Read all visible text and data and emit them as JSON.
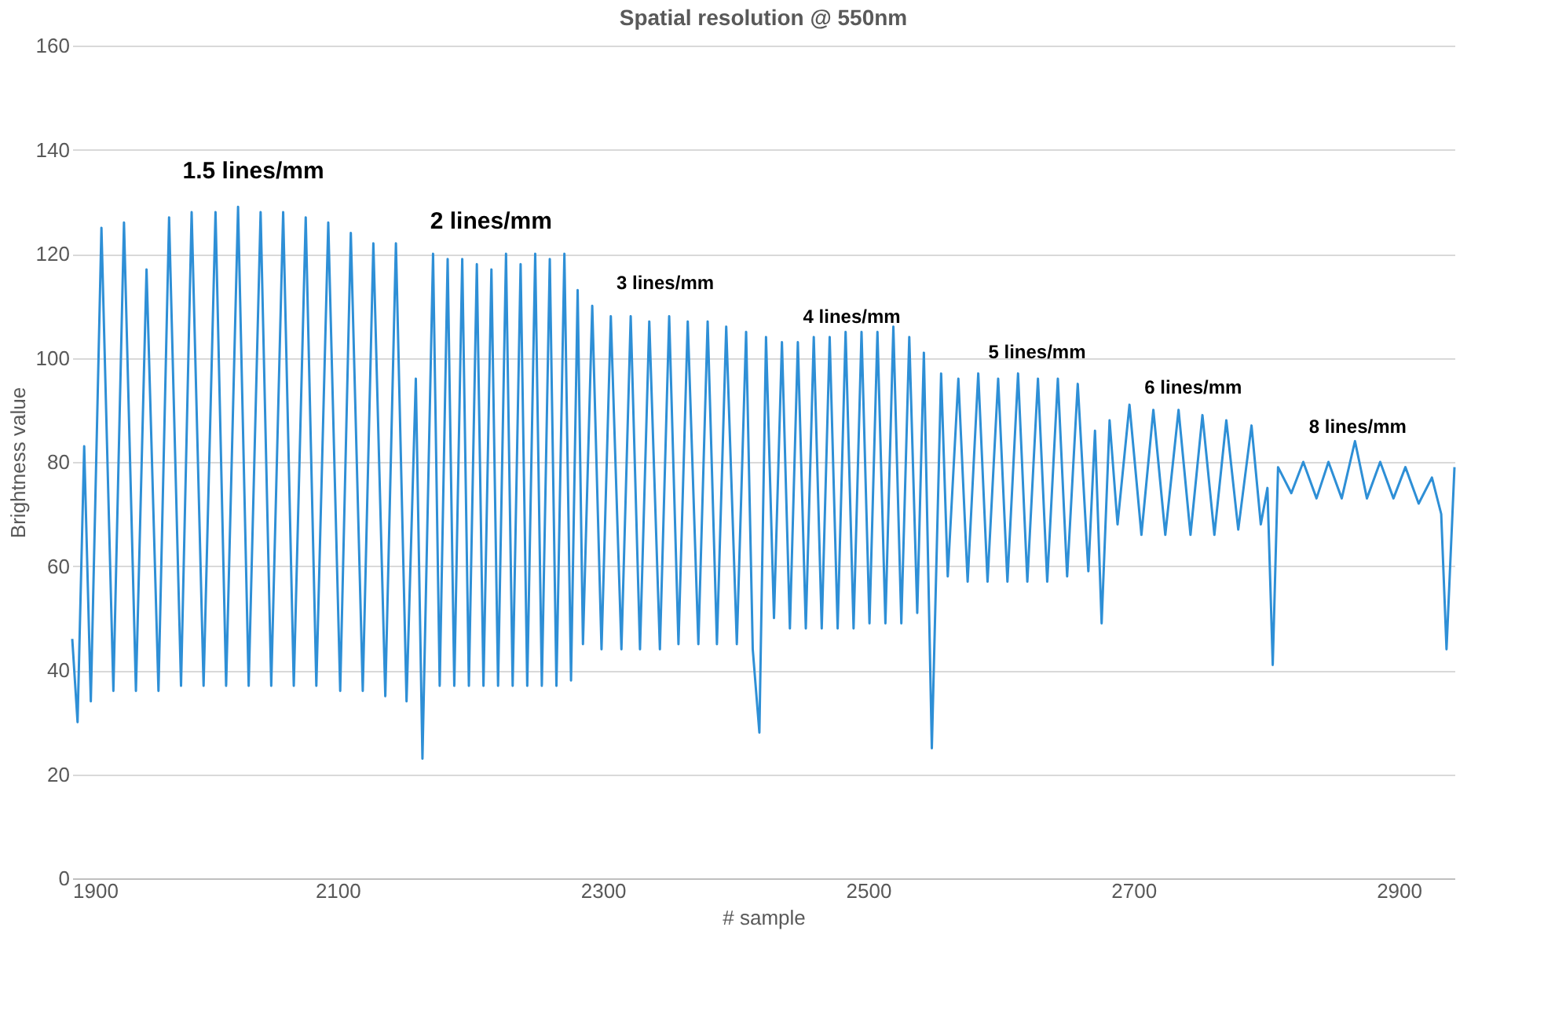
{
  "chart_data": {
    "type": "line",
    "title": "Spatial resolution @ 550nm",
    "xlabel": "# sample",
    "ylabel": "Brightness value",
    "xlim": [
      1900,
      2942
    ],
    "xticks": [
      1900,
      2100,
      2300,
      2500,
      2700,
      2900
    ],
    "ylim": [
      0,
      160
    ],
    "yticks": [
      0,
      20,
      40,
      60,
      80,
      100,
      120,
      140,
      160
    ],
    "grid": "y",
    "marker": "none",
    "line_style": "solid",
    "series": [
      {
        "color": "#2e8fd6",
        "x": [
          1900,
          1904,
          1909,
          1914,
          1922,
          1931,
          1939,
          1948,
          1956,
          1965,
          1973,
          1982,
          1990,
          1999,
          2008,
          2016,
          2025,
          2033,
          2042,
          2050,
          2059,
          2067,
          2076,
          2084,
          2093,
          2102,
          2110,
          2119,
          2127,
          2136,
          2144,
          2152,
          2159,
          2164,
          2172,
          2177,
          2183,
          2188,
          2194,
          2199,
          2205,
          2210,
          2216,
          2221,
          2227,
          2232,
          2238,
          2243,
          2249,
          2254,
          2260,
          2265,
          2271,
          2276,
          2281,
          2285,
          2292,
          2299,
          2306,
          2314,
          2321,
          2328,
          2335,
          2343,
          2350,
          2357,
          2364,
          2372,
          2379,
          2386,
          2393,
          2401,
          2408,
          2413,
          2418,
          2423,
          2429,
          2435,
          2441,
          2447,
          2453,
          2459,
          2465,
          2471,
          2477,
          2483,
          2489,
          2495,
          2501,
          2507,
          2513,
          2519,
          2525,
          2531,
          2537,
          2542,
          2548,
          2555,
          2560,
          2568,
          2575,
          2583,
          2590,
          2598,
          2605,
          2613,
          2620,
          2628,
          2635,
          2643,
          2650,
          2658,
          2666,
          2671,
          2676,
          2682,
          2688,
          2697,
          2706,
          2715,
          2724,
          2734,
          2743,
          2752,
          2761,
          2770,
          2779,
          2789,
          2796,
          2801,
          2805,
          2809,
          2819,
          2828,
          2838,
          2847,
          2857,
          2867,
          2876,
          2886,
          2896,
          2905,
          2915,
          2925,
          2932,
          2936,
          2942
        ],
        "values": [
          46,
          30,
          83,
          34,
          125,
          36,
          126,
          36,
          117,
          36,
          127,
          37,
          128,
          37,
          128,
          37,
          129,
          37,
          128,
          37,
          128,
          37,
          127,
          37,
          126,
          36,
          124,
          36,
          122,
          35,
          122,
          34,
          96,
          23,
          120,
          37,
          119,
          37,
          119,
          37,
          118,
          37,
          117,
          37,
          120,
          37,
          118,
          37,
          120,
          37,
          119,
          37,
          120,
          38,
          113,
          45,
          110,
          44,
          108,
          44,
          108,
          44,
          107,
          44,
          108,
          45,
          107,
          45,
          107,
          45,
          106,
          45,
          105,
          44,
          28,
          104,
          50,
          103,
          48,
          103,
          48,
          104,
          48,
          104,
          48,
          105,
          48,
          105,
          49,
          105,
          49,
          106,
          49,
          104,
          51,
          101,
          25,
          97,
          58,
          96,
          57,
          97,
          57,
          96,
          57,
          97,
          57,
          96,
          57,
          96,
          58,
          95,
          59,
          86,
          49,
          88,
          68,
          91,
          66,
          90,
          66,
          90,
          66,
          89,
          66,
          88,
          67,
          87,
          68,
          75,
          41,
          79,
          74,
          80,
          73,
          80,
          73,
          84,
          73,
          80,
          73,
          79,
          72,
          77,
          70,
          44,
          79
        ]
      }
    ],
    "annotations": [
      "1.5 lines/mm",
      "2 lines/mm",
      "3 lines/mm",
      "4 lines/mm",
      "5 lines/mm",
      "6 lines/mm",
      "8 lines/mm"
    ]
  }
}
